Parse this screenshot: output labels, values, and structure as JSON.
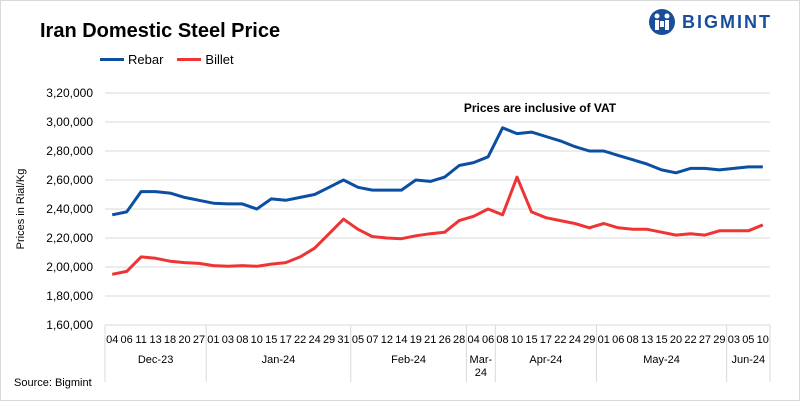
{
  "chart_data": {
    "type": "line",
    "title": "Iran Domestic Steel Price",
    "ylabel": "Prices in Rial/Kg",
    "xlabel": "",
    "ylim": [
      160000,
      320000
    ],
    "yticks": [
      160000,
      180000,
      200000,
      220000,
      240000,
      260000,
      280000,
      300000,
      320000
    ],
    "ytick_labels": [
      "1,60,000",
      "1,80,000",
      "2,00,000",
      "2,20,000",
      "2,40,000",
      "2,60,000",
      "2,80,000",
      "3,00,000",
      "3,20,000"
    ],
    "grid": true,
    "legend_placement": "top-left",
    "annotation": "Prices are inclusive  of VAT",
    "month_groups": [
      {
        "label": "Dec-23",
        "days": [
          "04",
          "06",
          "11",
          "13",
          "18",
          "20",
          "27"
        ]
      },
      {
        "label": "Jan-24",
        "days": [
          "01",
          "03",
          "08",
          "10",
          "15",
          "17",
          "22",
          "24",
          "29",
          "31"
        ]
      },
      {
        "label": "Feb-24",
        "days": [
          "05",
          "07",
          "12",
          "14",
          "19",
          "21",
          "26",
          "28"
        ]
      },
      {
        "label": "Mar-24",
        "days": [
          "04",
          "06"
        ]
      },
      {
        "label": "Apr-24",
        "days": [
          "08",
          "10",
          "15",
          "17",
          "22",
          "24",
          "29"
        ]
      },
      {
        "label": "May-24",
        "days": [
          "01",
          "06",
          "08",
          "13",
          "15",
          "20",
          "22",
          "27",
          "29"
        ]
      },
      {
        "label": "Jun-24",
        "days": [
          "03",
          "05",
          "10"
        ]
      }
    ],
    "series": [
      {
        "name": "Rebar",
        "color": "#0b4fa3",
        "values": [
          236000,
          238000,
          252000,
          252000,
          251000,
          248000,
          246000,
          244000,
          243500,
          243500,
          240000,
          247000,
          246000,
          248000,
          250000,
          255000,
          260000,
          255000,
          253000,
          253000,
          253000,
          260000,
          259000,
          262000,
          270000,
          272000,
          276000,
          296000,
          292000,
          293000,
          290000,
          287000,
          283000,
          280000,
          280000,
          277000,
          274000,
          271000,
          267000,
          265000,
          268000,
          268000,
          267000,
          268000,
          269000,
          269000
        ]
      },
      {
        "name": "Billet",
        "color": "#ee3434",
        "values": [
          195000,
          197000,
          207000,
          206000,
          204000,
          203000,
          202500,
          201000,
          200500,
          201000,
          200500,
          202000,
          203000,
          207000,
          213000,
          223000,
          233000,
          226000,
          221000,
          220000,
          219500,
          221500,
          223000,
          224000,
          232000,
          235000,
          240000,
          236000,
          262000,
          238000,
          234000,
          232000,
          230000,
          227000,
          230000,
          227000,
          226000,
          226000,
          224000,
          222000,
          223000,
          222000,
          225000,
          225000,
          225000,
          229000
        ]
      }
    ]
  },
  "logo": {
    "text": "BIGMINT"
  },
  "source": "Source: Bigmint"
}
